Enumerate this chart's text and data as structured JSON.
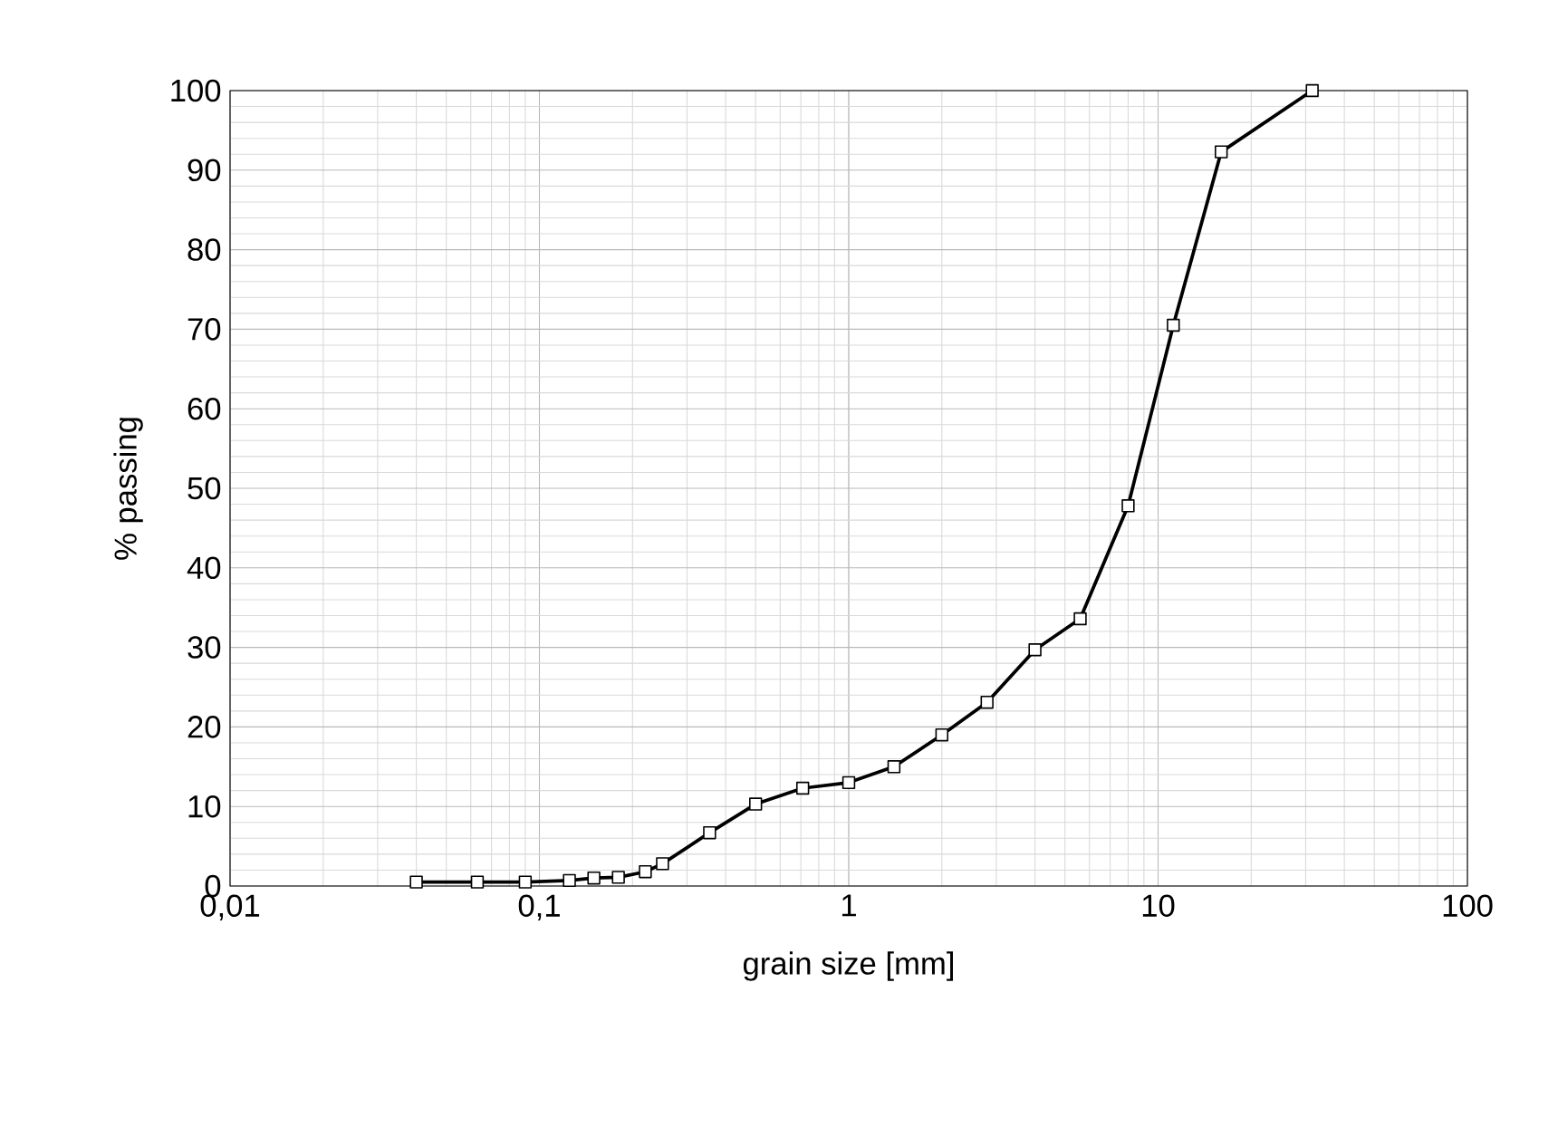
{
  "chart_data": {
    "type": "line",
    "xlabel": "grain size [mm]",
    "ylabel": "% passing",
    "x": [
      0.04,
      0.063,
      0.09,
      0.125,
      0.15,
      0.18,
      0.22,
      0.25,
      0.355,
      0.5,
      0.71,
      1.0,
      1.4,
      2,
      2.8,
      4,
      5.6,
      8,
      11.2,
      16,
      31.5
    ],
    "series": [
      {
        "color": "#000000",
        "values": [
          0.5,
          0.5,
          0.5,
          0.7,
          1.0,
          1.1,
          1.8,
          2.8,
          6.7,
          10.3,
          12.3,
          13.0,
          15.0,
          19.0,
          23.1,
          29.7,
          33.6,
          47.8,
          70.5,
          92.3,
          100
        ]
      }
    ],
    "log": "x",
    "xlim": [
      0.01,
      100
    ],
    "ylim": [
      0,
      100
    ],
    "xticks": [
      {
        "value": 0.01,
        "label": "0,01"
      },
      {
        "value": 0.1,
        "label": "0,1"
      },
      1,
      10,
      100
    ],
    "yticks": [
      0,
      10,
      20,
      30,
      40,
      50,
      60,
      70,
      80,
      90,
      100
    ],
    "grid": true,
    "marker": "square",
    "line_style": "solid"
  }
}
